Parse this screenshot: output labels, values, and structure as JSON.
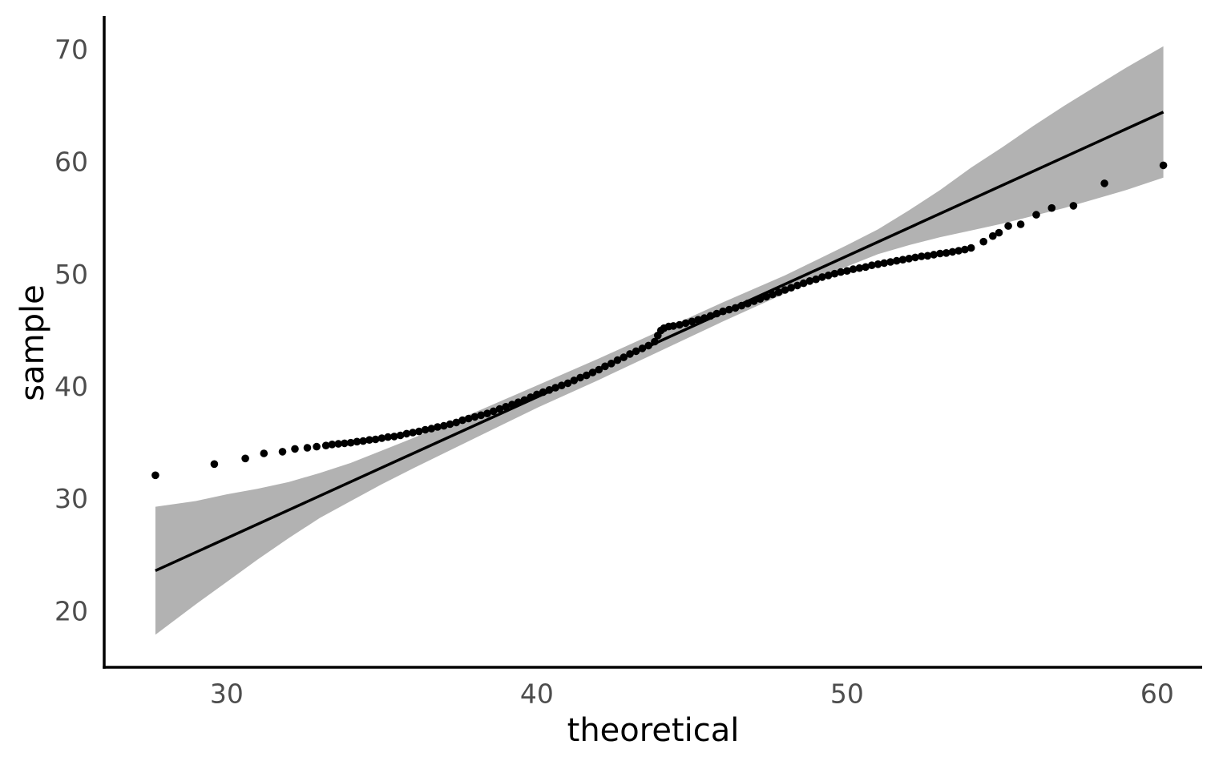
{
  "figure": {
    "background": "#ffffff",
    "colors": {
      "point": "#000000",
      "reference_line": "#000000",
      "band": "#b2b2b2",
      "axis_line": "#000000",
      "tick_label": "#4d4d4d",
      "axis_title": "#000000"
    }
  },
  "chart_data": {
    "type": "scatter",
    "subtype": "qq-plot",
    "title": "",
    "xlabel": "theoretical",
    "ylabel": "sample",
    "grid": false,
    "legend": "none",
    "x_ticks": [
      30,
      40,
      50,
      60
    ],
    "y_ticks": [
      20,
      30,
      40,
      50,
      60,
      70
    ],
    "x_range": [
      26.05,
      61.45
    ],
    "y_range": [
      15.0,
      73.0
    ],
    "reference_line": {
      "x1": 27.7,
      "y1": 23.6,
      "x2": 60.2,
      "y2": 64.45
    },
    "confidence_band": {
      "t": [
        27.7,
        29,
        30,
        31,
        32,
        33,
        34,
        35,
        36,
        38,
        40,
        42,
        44,
        46,
        48,
        50,
        51,
        52,
        53,
        54,
        55,
        56,
        57,
        58,
        59,
        60.2
      ],
      "lo": [
        17.9,
        20.6,
        22.6,
        24.6,
        26.5,
        28.3,
        29.8,
        31.3,
        32.7,
        35.4,
        38.1,
        40.6,
        43.2,
        45.8,
        48.3,
        50.7,
        51.8,
        52.6,
        53.3,
        53.9,
        54.5,
        55.2,
        55.9,
        56.7,
        57.5,
        58.6
      ],
      "hi": [
        29.3,
        29.8,
        30.4,
        30.9,
        31.5,
        32.3,
        33.2,
        34.3,
        35.4,
        37.7,
        40.1,
        42.5,
        45.0,
        47.5,
        49.9,
        52.6,
        54.0,
        55.7,
        57.5,
        59.5,
        61.3,
        63.2,
        65.0,
        66.7,
        68.4,
        70.3
      ]
    },
    "points": [
      [
        27.7,
        32.1
      ],
      [
        29.6,
        33.1
      ],
      [
        30.6,
        33.6
      ],
      [
        31.2,
        34.05
      ],
      [
        31.8,
        34.2
      ],
      [
        32.2,
        34.45
      ],
      [
        32.6,
        34.55
      ],
      [
        32.9,
        34.65
      ],
      [
        33.2,
        34.75
      ],
      [
        33.4,
        34.85
      ],
      [
        33.6,
        34.9
      ],
      [
        33.8,
        34.95
      ],
      [
        34.0,
        35.0
      ],
      [
        34.2,
        35.1
      ],
      [
        34.4,
        35.15
      ],
      [
        34.6,
        35.25
      ],
      [
        34.8,
        35.3
      ],
      [
        35.0,
        35.4
      ],
      [
        35.2,
        35.5
      ],
      [
        35.4,
        35.55
      ],
      [
        35.6,
        35.65
      ],
      [
        35.8,
        35.8
      ],
      [
        36.0,
        35.9
      ],
      [
        36.2,
        36.0
      ],
      [
        36.4,
        36.15
      ],
      [
        36.6,
        36.25
      ],
      [
        36.8,
        36.4
      ],
      [
        37.0,
        36.5
      ],
      [
        37.2,
        36.65
      ],
      [
        37.4,
        36.8
      ],
      [
        37.6,
        37.0
      ],
      [
        37.8,
        37.15
      ],
      [
        38.0,
        37.3
      ],
      [
        38.2,
        37.45
      ],
      [
        38.4,
        37.6
      ],
      [
        38.6,
        37.8
      ],
      [
        38.8,
        38.0
      ],
      [
        39.0,
        38.2
      ],
      [
        39.2,
        38.4
      ],
      [
        39.4,
        38.6
      ],
      [
        39.6,
        38.8
      ],
      [
        39.8,
        39.05
      ],
      [
        40.0,
        39.3
      ],
      [
        40.2,
        39.5
      ],
      [
        40.4,
        39.7
      ],
      [
        40.6,
        39.9
      ],
      [
        40.8,
        40.1
      ],
      [
        41.0,
        40.3
      ],
      [
        41.2,
        40.55
      ],
      [
        41.4,
        40.8
      ],
      [
        41.6,
        41.0
      ],
      [
        41.8,
        41.25
      ],
      [
        42.0,
        41.5
      ],
      [
        42.2,
        41.8
      ],
      [
        42.4,
        42.05
      ],
      [
        42.6,
        42.35
      ],
      [
        42.8,
        42.6
      ],
      [
        43.0,
        42.9
      ],
      [
        43.2,
        43.15
      ],
      [
        43.4,
        43.4
      ],
      [
        43.6,
        43.65
      ],
      [
        43.8,
        44.0
      ],
      [
        43.9,
        44.55
      ],
      [
        44.0,
        45.0
      ],
      [
        44.1,
        45.2
      ],
      [
        44.25,
        45.35
      ],
      [
        44.4,
        45.4
      ],
      [
        44.6,
        45.5
      ],
      [
        44.8,
        45.65
      ],
      [
        45.0,
        45.8
      ],
      [
        45.2,
        45.95
      ],
      [
        45.4,
        46.1
      ],
      [
        45.6,
        46.3
      ],
      [
        45.8,
        46.5
      ],
      [
        46.0,
        46.7
      ],
      [
        46.2,
        46.85
      ],
      [
        46.4,
        47.0
      ],
      [
        46.6,
        47.2
      ],
      [
        46.8,
        47.4
      ],
      [
        47.0,
        47.6
      ],
      [
        47.2,
        47.8
      ],
      [
        47.4,
        48.0
      ],
      [
        47.6,
        48.2
      ],
      [
        47.8,
        48.4
      ],
      [
        48.0,
        48.6
      ],
      [
        48.2,
        48.8
      ],
      [
        48.4,
        49.0
      ],
      [
        48.6,
        49.2
      ],
      [
        48.8,
        49.4
      ],
      [
        49.0,
        49.55
      ],
      [
        49.2,
        49.75
      ],
      [
        49.4,
        49.9
      ],
      [
        49.6,
        50.05
      ],
      [
        49.8,
        50.2
      ],
      [
        50.0,
        50.3
      ],
      [
        50.2,
        50.45
      ],
      [
        50.4,
        50.55
      ],
      [
        50.6,
        50.65
      ],
      [
        50.8,
        50.8
      ],
      [
        51.0,
        50.9
      ],
      [
        51.2,
        51.0
      ],
      [
        51.4,
        51.1
      ],
      [
        51.6,
        51.2
      ],
      [
        51.8,
        51.3
      ],
      [
        52.0,
        51.4
      ],
      [
        52.2,
        51.5
      ],
      [
        52.4,
        51.6
      ],
      [
        52.6,
        51.65
      ],
      [
        52.8,
        51.75
      ],
      [
        53.0,
        51.85
      ],
      [
        53.2,
        51.9
      ],
      [
        53.4,
        52.0
      ],
      [
        53.6,
        52.1
      ],
      [
        53.8,
        52.2
      ],
      [
        54.0,
        52.35
      ],
      [
        54.4,
        52.9
      ],
      [
        54.7,
        53.4
      ],
      [
        54.9,
        53.7
      ],
      [
        55.2,
        54.3
      ],
      [
        55.6,
        54.45
      ],
      [
        56.1,
        55.3
      ],
      [
        56.6,
        55.9
      ],
      [
        57.3,
        56.1
      ],
      [
        58.3,
        58.1
      ],
      [
        60.2,
        59.7
      ]
    ],
    "point_radius": 4.8,
    "line_width": 3.5
  }
}
